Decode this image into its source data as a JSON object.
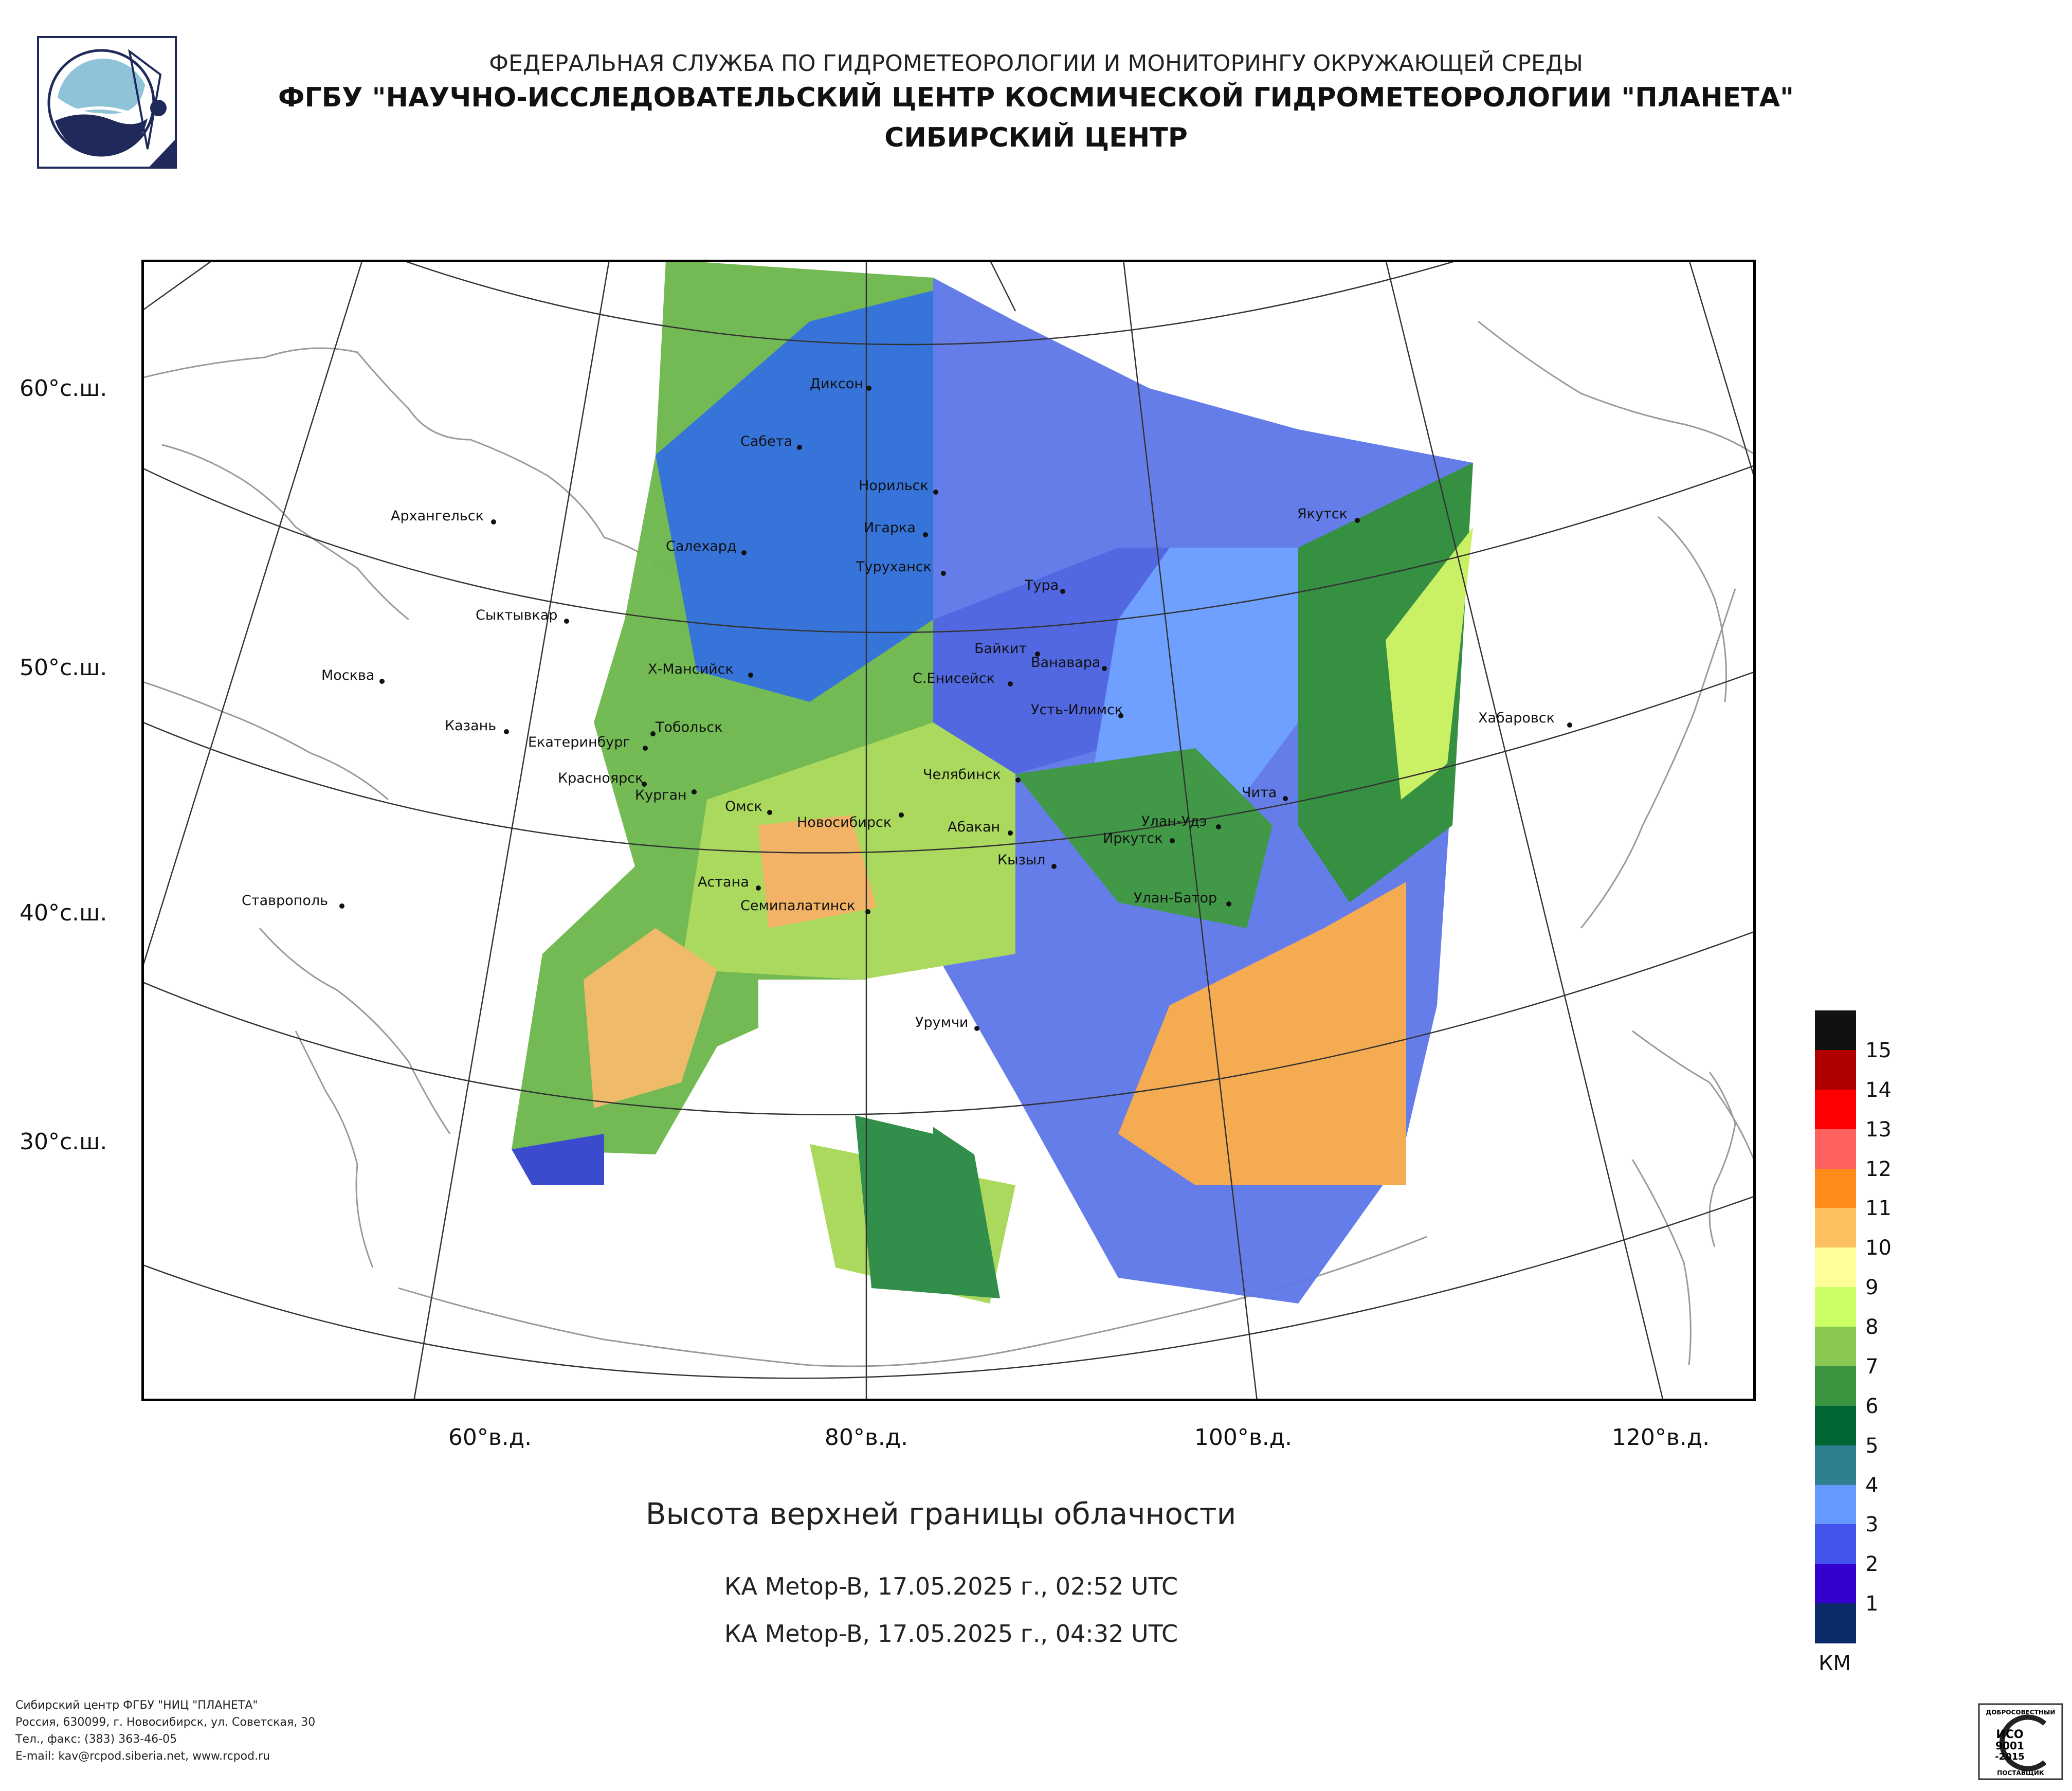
{
  "header": {
    "line1": "ФЕДЕРАЛЬНАЯ СЛУЖБА ПО ГИДРОМЕТЕОРОЛОГИИ И МОНИТОРИНГУ ОКРУЖАЮЩЕЙ СРЕДЫ",
    "line2": "ФГБУ \"НАУЧНО-ИССЛЕДОВАТЕЛЬСКИЙ ЦЕНТР КОСМИЧЕСКОЙ ГИДРОМЕТЕОРОЛОГИИ \"ПЛАНЕТА\"",
    "line3": "СИБИРСКИЙ ЦЕНТР"
  },
  "map": {
    "lat_labels": [
      "60°с.ш.",
      "50°с.ш.",
      "40°с.ш.",
      "30°с.ш."
    ],
    "lon_labels": [
      "60°в.д.",
      "80°в.д.",
      "100°в.д.",
      "120°в.д."
    ],
    "cities": [
      {
        "name": "Диксон"
      },
      {
        "name": "Сабета"
      },
      {
        "name": "Норильск"
      },
      {
        "name": "Архангельск"
      },
      {
        "name": "Салехард"
      },
      {
        "name": "Игарка"
      },
      {
        "name": "Туруханск"
      },
      {
        "name": "Тура"
      },
      {
        "name": "Якутск"
      },
      {
        "name": "Сыктывкар"
      },
      {
        "name": "Байкит"
      },
      {
        "name": "Ванавара"
      },
      {
        "name": "Москва"
      },
      {
        "name": "Х-Мансийск"
      },
      {
        "name": "С.Енисейск"
      },
      {
        "name": "Усть-Илимск"
      },
      {
        "name": "Хабаровск"
      },
      {
        "name": "Казань"
      },
      {
        "name": "Тобольск"
      },
      {
        "name": "Екатеринбург"
      },
      {
        "name": "Челябинск"
      },
      {
        "name": "Красноярск"
      },
      {
        "name": "Курган"
      },
      {
        "name": "Чита"
      },
      {
        "name": "Омск"
      },
      {
        "name": "Новосибирск"
      },
      {
        "name": "Абакан"
      },
      {
        "name": "Улан-Удэ"
      },
      {
        "name": "Иркутск"
      },
      {
        "name": "Кызыл"
      },
      {
        "name": "Астана"
      },
      {
        "name": "Ставрополь"
      },
      {
        "name": "Семипалатинск"
      },
      {
        "name": "Улан-Батор"
      },
      {
        "name": "Урумчи"
      }
    ]
  },
  "title": "Высота верхней границы облачности",
  "passes": [
    "КА Metop-B, 17.05.2025 г., 02:52 UTC",
    "КА Metop-B, 17.05.2025 г., 04:32 UTC"
  ],
  "legend": {
    "unit": "КМ",
    "labels": [
      "15",
      "14",
      "13",
      "12",
      "11",
      "10",
      "9",
      "8",
      "7",
      "6",
      "5",
      "4",
      "3",
      "2",
      "1"
    ],
    "colors": [
      "#111111",
      "#b00000",
      "#ff0000",
      "#ff6060",
      "#ff8c1a",
      "#ffc060",
      "#ffff99",
      "#ccff66",
      "#88c850",
      "#3a9440",
      "#006633",
      "#2e8090",
      "#6699ff",
      "#4455ee",
      "#3300cc",
      "#0a2a6a"
    ]
  },
  "footer": [
    "Сибирский центр ФГБУ \"НИЦ \"ПЛАНЕТА\"",
    "Россия, 630099, г. Новосибирск, ул. Советская, 30",
    "Тел., факс: (383) 363-46-05",
    "E-mail: kav@rcpod.siberia.net, www.rcpod.ru"
  ],
  "iso_badge": [
    "ДОБРОСОВЕСТНЫЙ",
    "ИСО",
    "9001",
    "-2015",
    "ПОСТАВЩИК"
  ]
}
